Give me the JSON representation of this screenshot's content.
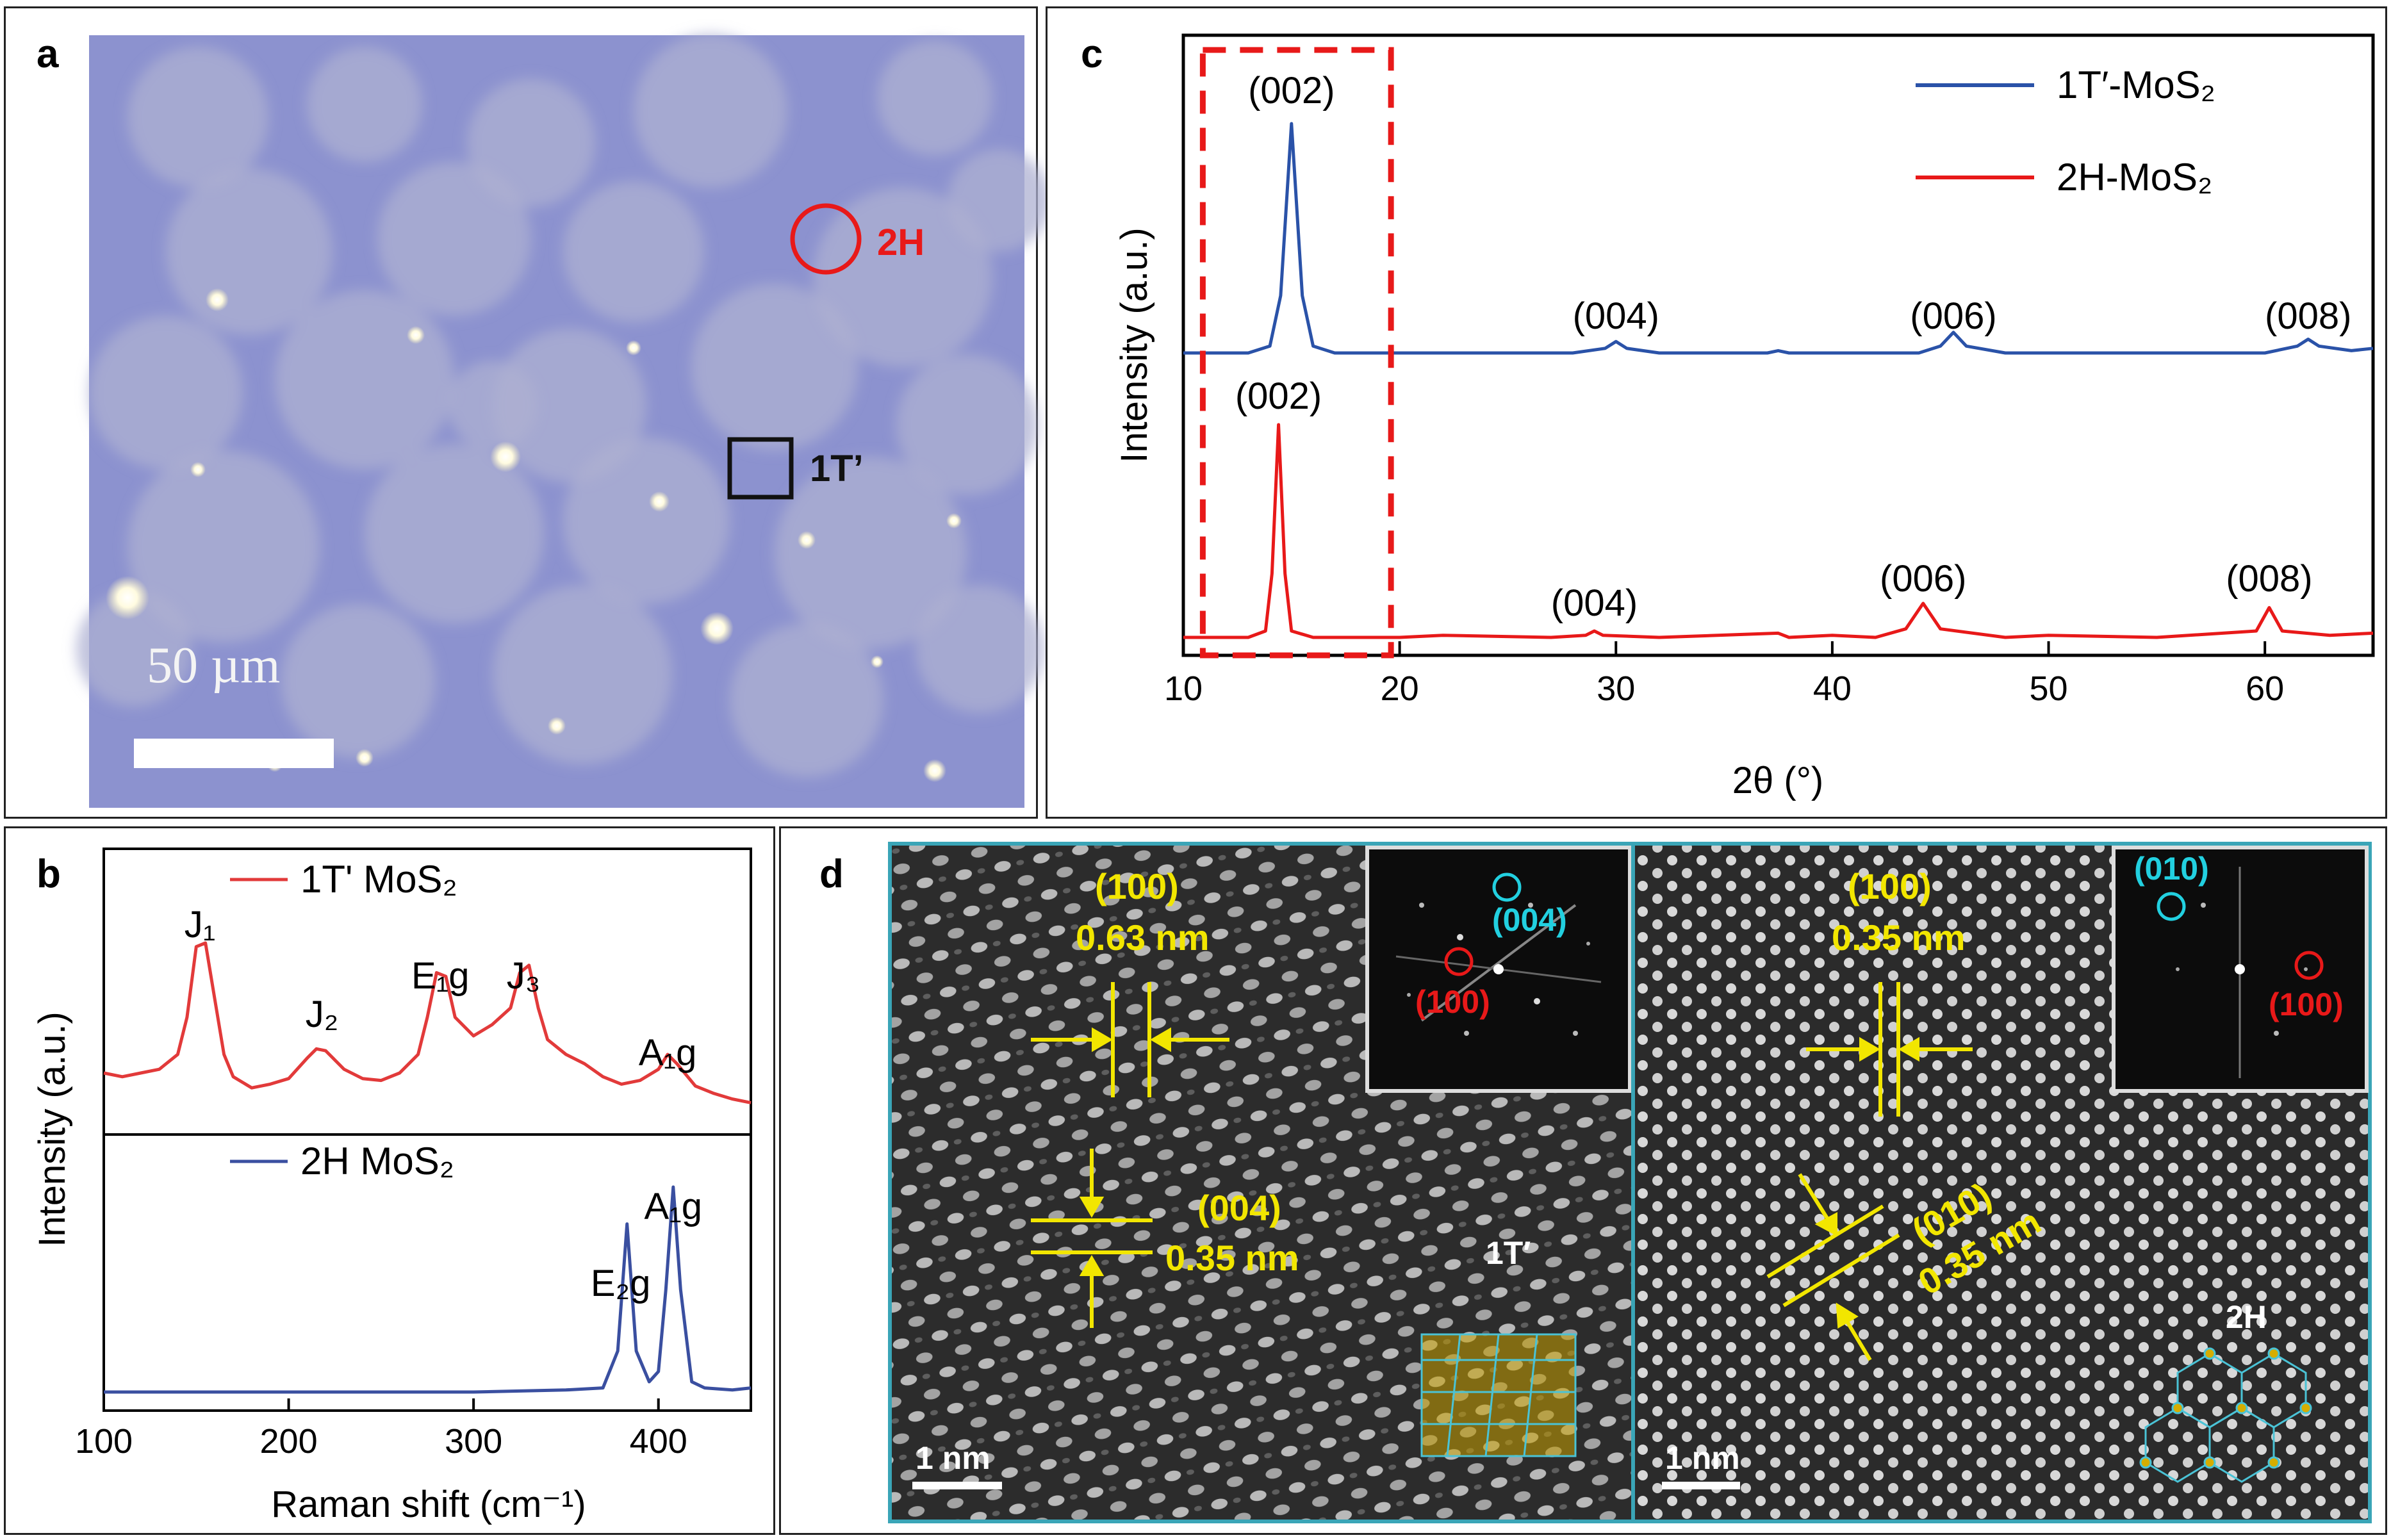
{
  "panel_a": {
    "label": "a",
    "marker_2h": "2H",
    "marker_1t": "1T’",
    "scale_bar": "50 µm",
    "colors": {
      "background": "#8e93cc",
      "circle": "#e81919"
    }
  },
  "panel_b": {
    "label": "b",
    "top_legend": "1T' MoS₂",
    "bottom_legend": "2H MoS₂",
    "peaks_1t": [
      {
        "name": "J₁",
        "x": 152
      },
      {
        "name": "J₂",
        "x": 218
      },
      {
        "name": "E₁g",
        "x": 282
      },
      {
        "name": "J₃",
        "x": 327
      },
      {
        "name": "A₁g",
        "x": 405
      }
    ],
    "peaks_2h": [
      {
        "name": "E₂g",
        "x": 383
      },
      {
        "name": "A₁g",
        "x": 408
      }
    ]
  },
  "panel_c": {
    "label": "c",
    "legend_1t": "1T′-MoS₂",
    "legend_2h": "2H-MoS₂",
    "peaks_1t": [
      {
        "label": "(002)",
        "x": 15.0
      },
      {
        "label": "(004)",
        "x": 30.0
      },
      {
        "label": "(006)",
        "x": 45.6
      },
      {
        "label": "(008)",
        "x": 62.0
      }
    ],
    "peaks_2h": [
      {
        "label": "(002)",
        "x": 14.4
      },
      {
        "label": "(004)",
        "x": 29.0
      },
      {
        "label": "(006)",
        "x": 44.2
      },
      {
        "label": "(008)",
        "x": 60.2
      }
    ]
  },
  "panel_d": {
    "label": "d",
    "left": {
      "plane_100": "(100)",
      "d_100": "0.63 nm",
      "plane_004": "(004)",
      "d_004": "0.35 nm",
      "fft_spot_1": "(004)",
      "fft_spot_2": "(100)",
      "phase": "1T′",
      "scale": "1 nm"
    },
    "right": {
      "plane_100": "(100)",
      "d_100": "0.35 nm",
      "plane_010": "(010)",
      "d_010": "0.35 nm",
      "fft_spot_1": "(010)",
      "fft_spot_2": "(100)",
      "phase": "2H",
      "scale": "1 nm"
    }
  },
  "chart_data": [
    {
      "panel": "b",
      "type": "line",
      "title": "",
      "xlabel": "Raman shift (cm⁻¹)",
      "ylabel": "Intensity (a.u.)",
      "xlim": [
        100,
        450
      ],
      "x_ticks": [
        100,
        200,
        300,
        400
      ],
      "series": [
        {
          "name": "1T' MoS₂",
          "color": "#e23a3a",
          "x": [
            100,
            110,
            120,
            130,
            140,
            145,
            150,
            155,
            160,
            165,
            170,
            180,
            190,
            200,
            210,
            215,
            220,
            225,
            230,
            240,
            250,
            260,
            270,
            275,
            280,
            285,
            290,
            300,
            310,
            320,
            325,
            330,
            335,
            340,
            350,
            360,
            370,
            380,
            390,
            400,
            405,
            410,
            420,
            430,
            440,
            450
          ],
          "y": [
            0.2,
            0.18,
            0.2,
            0.22,
            0.3,
            0.5,
            0.88,
            0.9,
            0.6,
            0.3,
            0.18,
            0.12,
            0.14,
            0.17,
            0.28,
            0.33,
            0.32,
            0.27,
            0.22,
            0.17,
            0.16,
            0.2,
            0.3,
            0.5,
            0.74,
            0.72,
            0.5,
            0.4,
            0.46,
            0.55,
            0.74,
            0.78,
            0.55,
            0.38,
            0.3,
            0.25,
            0.18,
            0.14,
            0.16,
            0.22,
            0.3,
            0.25,
            0.13,
            0.09,
            0.06,
            0.04
          ]
        },
        {
          "name": "2H MoS₂",
          "color": "#3a4fa0",
          "x": [
            100,
            150,
            200,
            250,
            300,
            350,
            370,
            378,
            383,
            388,
            395,
            400,
            404,
            408,
            412,
            418,
            425,
            440,
            450
          ],
          "y": [
            0.0,
            0.0,
            0.0,
            0.0,
            0.0,
            0.01,
            0.02,
            0.2,
            0.82,
            0.2,
            0.05,
            0.1,
            0.5,
            1.0,
            0.5,
            0.05,
            0.02,
            0.01,
            0.02
          ]
        }
      ]
    },
    {
      "panel": "c",
      "type": "line",
      "title": "",
      "xlabel": "2θ (°)",
      "ylabel": "Intensity (a.u.)",
      "xlim": [
        10,
        65
      ],
      "x_ticks": [
        10,
        20,
        30,
        40,
        50,
        60
      ],
      "series": [
        {
          "name": "1T′-MoS₂",
          "color": "#2a52a8",
          "x": [
            10,
            13,
            14,
            14.5,
            15.0,
            15.5,
            16,
            17,
            20,
            28,
            29.5,
            30,
            30.5,
            32,
            37,
            37.5,
            38,
            44,
            45,
            45.6,
            46.2,
            48,
            55,
            60,
            61.5,
            62,
            62.5,
            64,
            65
          ],
          "y": [
            0,
            0,
            0.03,
            0.25,
            1.0,
            0.25,
            0.03,
            0,
            0,
            0,
            0.02,
            0.05,
            0.02,
            0,
            0,
            0.01,
            0,
            0,
            0.03,
            0.09,
            0.03,
            0,
            0,
            0,
            0.03,
            0.06,
            0.03,
            0.01,
            0.02
          ]
        },
        {
          "name": "2H-MoS₂",
          "color": "#e81919",
          "x": [
            10,
            13,
            13.8,
            14.1,
            14.4,
            14.7,
            15,
            16,
            20,
            22,
            27,
            28.6,
            29,
            29.4,
            32,
            37.5,
            38,
            40,
            42,
            43.4,
            44.2,
            45,
            48,
            50,
            55,
            59.6,
            60.2,
            60.8,
            63,
            65
          ],
          "y": [
            0,
            0,
            0.03,
            0.3,
            1.0,
            0.3,
            0.03,
            0,
            0,
            0.01,
            0,
            0.01,
            0.03,
            0.01,
            0,
            0.02,
            0,
            0.01,
            0,
            0.04,
            0.16,
            0.04,
            0,
            0.01,
            0,
            0.03,
            0.14,
            0.03,
            0.01,
            0.02
          ]
        }
      ]
    }
  ]
}
